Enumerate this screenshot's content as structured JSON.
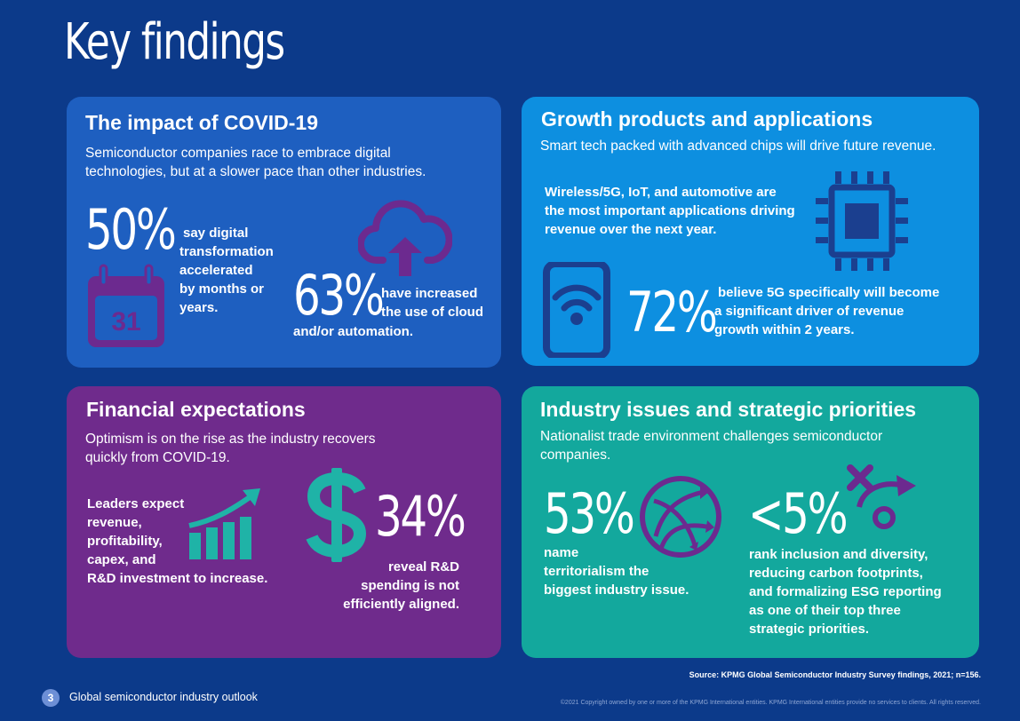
{
  "page": {
    "title": "Key findings"
  },
  "covid": {
    "title": "The impact of COVID-19",
    "subtitle_lines": [
      "Semiconductor companies race to embrace digital",
      "technologies, but at a slower pace than other industries."
    ],
    "stat1": {
      "value": "50%",
      "text_lines": [
        "say digital",
        "transformation",
        "accelerated",
        "by months or",
        "years."
      ]
    },
    "calendar_day": "31",
    "stat2": {
      "value": "63%",
      "text_lines": [
        "have increased",
        "the use of cloud"
      ],
      "text_tail": "and/or automation."
    }
  },
  "growth": {
    "title": "Growth products and applications",
    "subtitle": "Smart tech packed with advanced chips will drive future revenue.",
    "body_lines": [
      "Wireless/5G, IoT, and automotive are",
      "the most important applications driving",
      "revenue over the next year."
    ],
    "stat": {
      "value": "72%",
      "text_lines": [
        "believe 5G specifically will become",
        "a significant driver of revenue",
        "growth within 2 years."
      ]
    }
  },
  "financial": {
    "title": "Financial expectations",
    "subtitle_lines": [
      "Optimism is on the rise as the industry recovers",
      "quickly from COVID-19."
    ],
    "body_lines": [
      "Leaders expect",
      "revenue,",
      "profitability,",
      "capex, and",
      "R&D investment to increase."
    ],
    "stat": {
      "value": "34%",
      "text_lines": [
        "reveal R&D",
        "spending is not",
        "efficiently aligned."
      ]
    }
  },
  "industry": {
    "title": "Industry issues and strategic priorities",
    "subtitle_lines": [
      "Nationalist trade environment challenges semiconductor",
      "companies."
    ],
    "stat1": {
      "value": "53%",
      "text_lines": [
        "name",
        "territorialism the",
        "biggest industry issue."
      ]
    },
    "stat2": {
      "value": "<5%",
      "text_lines": [
        "rank inclusion and diversity,",
        "reducing carbon footprints,",
        "and formalizing ESG reporting",
        "as one of their top three",
        "strategic priorities."
      ]
    }
  },
  "footer": {
    "page_number": "3",
    "publication": "Global semiconductor industry outlook",
    "source": "Source: KPMG Global Semiconductor Industry Survey findings, 2021; n=156.",
    "copyright": "©2021 Copyright owned by one or more of the KPMG International entities. KPMG International entities provide no services to clients. All rights reserved."
  },
  "colors": {
    "background": "#0c3a8a",
    "covid_card": "#1e5fc0",
    "growth_card": "#0d8fe0",
    "financial_card": "#6f2b8c",
    "industry_card": "#13a89d",
    "purple_icon": "#6c2a8f",
    "teal_icon": "#1fb3a7",
    "navy_icon": "#1b3f8f"
  }
}
